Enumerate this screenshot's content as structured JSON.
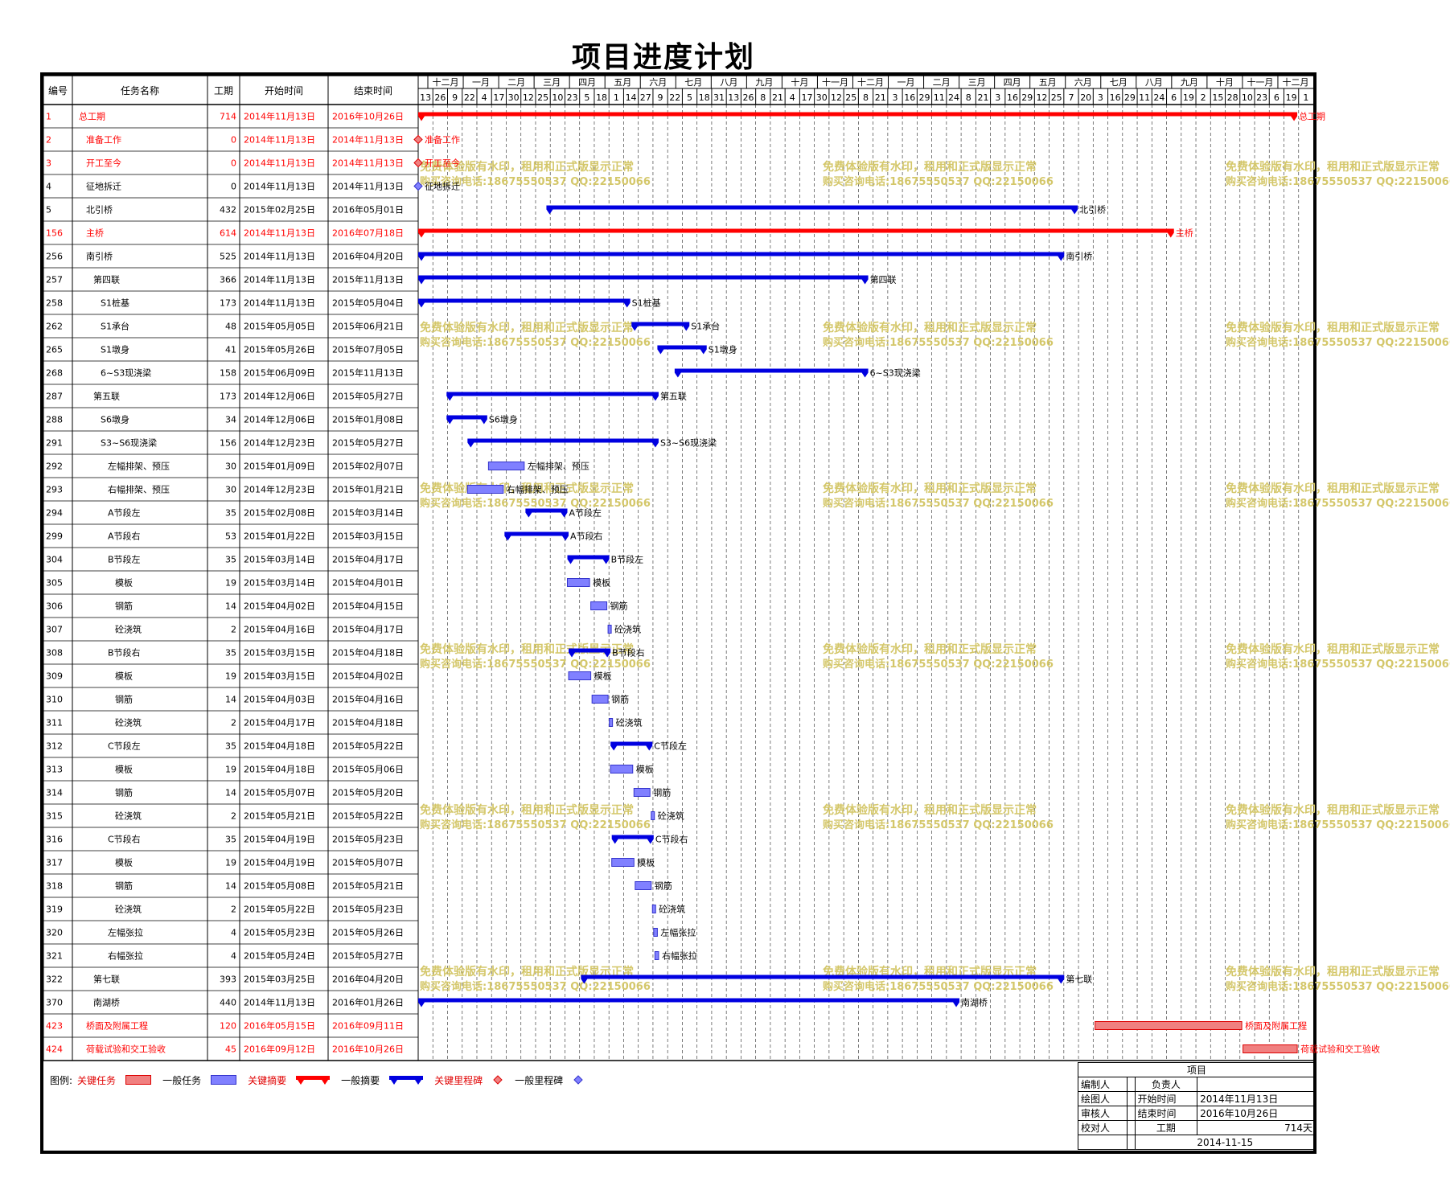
{
  "title": "项目进度计划",
  "columns": {
    "id": "编号",
    "name": "任务名称",
    "dur": "工期",
    "start": "开始时间",
    "end": "结束时间"
  },
  "timescale": {
    "months": [
      "十二月",
      "一月",
      "二月",
      "三月",
      "四月",
      "五月",
      "六月",
      "七月",
      "八月",
      "九月",
      "十月",
      "十一月",
      "十二月",
      "一月",
      "二月",
      "三月",
      "四月",
      "五月",
      "六月",
      "七月",
      "八月",
      "九月",
      "十月",
      "十一月",
      "十二月"
    ],
    "days": [
      "13",
      "26",
      "9",
      "22",
      "4",
      "17",
      "30",
      "12",
      "25",
      "10",
      "23",
      "5",
      "18",
      "1",
      "14",
      "27",
      "9",
      "22",
      "5",
      "18",
      "31",
      "13",
      "26",
      "8",
      "21",
      "4",
      "17",
      "30",
      "12",
      "25",
      "8",
      "21",
      "3",
      "16",
      "29",
      "11",
      "24",
      "8",
      "21",
      "3",
      "16",
      "29",
      "12",
      "25",
      "7",
      "20",
      "3",
      "16",
      "29",
      "11",
      "24",
      "6",
      "19",
      "2",
      "15",
      "28",
      "10",
      "23",
      "6",
      "19",
      "1"
    ]
  },
  "colors": {
    "critical": "#ff0000",
    "normal": "#0000e0",
    "critical_task": "#f08080",
    "normal_task": "#8080ff",
    "watermark": "#d4c76a"
  },
  "chart_data": {
    "type": "gantt",
    "title": "项目进度计划",
    "x_start": "2014-11-13",
    "x_end": "2016-10-26",
    "tasks": [
      {
        "id": "1",
        "name": "总工期",
        "indent": 0,
        "dur": 714,
        "start": "2014年11月13日",
        "end": "2016年10月26日",
        "s": "2014-11-13",
        "e": "2016-10-26",
        "kind": "summary",
        "critical": true,
        "label": "总工期"
      },
      {
        "id": "2",
        "name": "准备工作",
        "indent": 1,
        "dur": 0,
        "start": "2014年11月13日",
        "end": "2014年11月13日",
        "s": "2014-11-13",
        "e": "2014-11-13",
        "kind": "milestone",
        "critical": true,
        "label": "准备工作"
      },
      {
        "id": "3",
        "name": "开工至今",
        "indent": 1,
        "dur": 0,
        "start": "2014年11月13日",
        "end": "2014年11月13日",
        "s": "2014-11-13",
        "e": "2014-11-13",
        "kind": "milestone",
        "critical": true,
        "label": "开工至今"
      },
      {
        "id": "4",
        "name": "征地拆迁",
        "indent": 1,
        "dur": 0,
        "start": "2014年11月13日",
        "end": "2014年11月13日",
        "s": "2014-11-13",
        "e": "2014-11-13",
        "kind": "milestone",
        "critical": false,
        "label": "征地拆迁"
      },
      {
        "id": "5",
        "name": "北引桥",
        "indent": 1,
        "dur": 432,
        "start": "2015年02月25日",
        "end": "2016年05月01日",
        "s": "2015-02-25",
        "e": "2016-05-01",
        "kind": "summary",
        "critical": false,
        "label": "北引桥"
      },
      {
        "id": "156",
        "name": "主桥",
        "indent": 1,
        "dur": 614,
        "start": "2014年11月13日",
        "end": "2016年07月18日",
        "s": "2014-11-13",
        "e": "2016-07-18",
        "kind": "summary",
        "critical": true,
        "label": "主桥"
      },
      {
        "id": "256",
        "name": "南引桥",
        "indent": 1,
        "dur": 525,
        "start": "2014年11月13日",
        "end": "2016年04月20日",
        "s": "2014-11-13",
        "e": "2016-04-20",
        "kind": "summary",
        "critical": false,
        "label": "南引桥"
      },
      {
        "id": "257",
        "name": "第四联",
        "indent": 2,
        "dur": 366,
        "start": "2014年11月13日",
        "end": "2015年11月13日",
        "s": "2014-11-13",
        "e": "2015-11-13",
        "kind": "summary",
        "critical": false,
        "label": "第四联"
      },
      {
        "id": "258",
        "name": "S1桩基",
        "indent": 3,
        "dur": 173,
        "start": "2014年11月13日",
        "end": "2015年05月04日",
        "s": "2014-11-13",
        "e": "2015-05-04",
        "kind": "summary",
        "critical": false,
        "label": "S1桩基"
      },
      {
        "id": "262",
        "name": "S1承台",
        "indent": 3,
        "dur": 48,
        "start": "2015年05月05日",
        "end": "2015年06月21日",
        "s": "2015-05-05",
        "e": "2015-06-21",
        "kind": "summary",
        "critical": false,
        "label": "S1承台"
      },
      {
        "id": "265",
        "name": "S1墩身",
        "indent": 3,
        "dur": 41,
        "start": "2015年05月26日",
        "end": "2015年07月05日",
        "s": "2015-05-26",
        "e": "2015-07-05",
        "kind": "summary",
        "critical": false,
        "label": "S1墩身"
      },
      {
        "id": "268",
        "name": "6~S3现浇梁",
        "indent": 3,
        "dur": 158,
        "start": "2015年06月09日",
        "end": "2015年11月13日",
        "s": "2015-06-09",
        "e": "2015-11-13",
        "kind": "summary",
        "critical": false,
        "label": "6~S3现浇梁"
      },
      {
        "id": "287",
        "name": "第五联",
        "indent": 2,
        "dur": 173,
        "start": "2014年12月06日",
        "end": "2015年05月27日",
        "s": "2014-12-06",
        "e": "2015-05-27",
        "kind": "summary",
        "critical": false,
        "label": "第五联"
      },
      {
        "id": "288",
        "name": "S6墩身",
        "indent": 3,
        "dur": 34,
        "start": "2014年12月06日",
        "end": "2015年01月08日",
        "s": "2014-12-06",
        "e": "2015-01-08",
        "kind": "summary",
        "critical": false,
        "label": "S6墩身"
      },
      {
        "id": "291",
        "name": "S3~S6现浇梁",
        "indent": 3,
        "dur": 156,
        "start": "2014年12月23日",
        "end": "2015年05月27日",
        "s": "2014-12-23",
        "e": "2015-05-27",
        "kind": "summary",
        "critical": false,
        "label": "S3~S6现浇梁"
      },
      {
        "id": "292",
        "name": "左幅排架、预压",
        "indent": 4,
        "dur": 30,
        "start": "2015年01月09日",
        "end": "2015年02月07日",
        "s": "2015-01-09",
        "e": "2015-02-07",
        "kind": "task",
        "critical": false,
        "label": "左幅排架、预压"
      },
      {
        "id": "293",
        "name": "右幅排架、预压",
        "indent": 4,
        "dur": 30,
        "start": "2014年12月23日",
        "end": "2015年01月21日",
        "s": "2014-12-23",
        "e": "2015-01-21",
        "kind": "task",
        "critical": false,
        "label": "右幅排架、预压"
      },
      {
        "id": "294",
        "name": "A节段左",
        "indent": 4,
        "dur": 35,
        "start": "2015年02月08日",
        "end": "2015年03月14日",
        "s": "2015-02-08",
        "e": "2015-03-14",
        "kind": "summary",
        "critical": false,
        "label": "A节段左"
      },
      {
        "id": "299",
        "name": "A节段右",
        "indent": 4,
        "dur": 53,
        "start": "2015年01月22日",
        "end": "2015年03月15日",
        "s": "2015-01-22",
        "e": "2015-03-15",
        "kind": "summary",
        "critical": false,
        "label": "A节段右"
      },
      {
        "id": "304",
        "name": "B节段左",
        "indent": 4,
        "dur": 35,
        "start": "2015年03月14日",
        "end": "2015年04月17日",
        "s": "2015-03-14",
        "e": "2015-04-17",
        "kind": "summary",
        "critical": false,
        "label": "B节段左"
      },
      {
        "id": "305",
        "name": "模板",
        "indent": 5,
        "dur": 19,
        "start": "2015年03月14日",
        "end": "2015年04月01日",
        "s": "2015-03-14",
        "e": "2015-04-01",
        "kind": "task",
        "critical": false,
        "label": "模板"
      },
      {
        "id": "306",
        "name": "钢筋",
        "indent": 5,
        "dur": 14,
        "start": "2015年04月02日",
        "end": "2015年04月15日",
        "s": "2015-04-02",
        "e": "2015-04-15",
        "kind": "task",
        "critical": false,
        "label": "钢筋"
      },
      {
        "id": "307",
        "name": "砼浇筑",
        "indent": 5,
        "dur": 2,
        "start": "2015年04月16日",
        "end": "2015年04月17日",
        "s": "2015-04-16",
        "e": "2015-04-17",
        "kind": "task",
        "critical": false,
        "label": "砼浇筑"
      },
      {
        "id": "308",
        "name": "B节段右",
        "indent": 4,
        "dur": 35,
        "start": "2015年03月15日",
        "end": "2015年04月18日",
        "s": "2015-03-15",
        "e": "2015-04-18",
        "kind": "summary",
        "critical": false,
        "label": "B节段右"
      },
      {
        "id": "309",
        "name": "模板",
        "indent": 5,
        "dur": 19,
        "start": "2015年03月15日",
        "end": "2015年04月02日",
        "s": "2015-03-15",
        "e": "2015-04-02",
        "kind": "task",
        "critical": false,
        "label": "模板"
      },
      {
        "id": "310",
        "name": "钢筋",
        "indent": 5,
        "dur": 14,
        "start": "2015年04月03日",
        "end": "2015年04月16日",
        "s": "2015-04-03",
        "e": "2015-04-16",
        "kind": "task",
        "critical": false,
        "label": "钢筋"
      },
      {
        "id": "311",
        "name": "砼浇筑",
        "indent": 5,
        "dur": 2,
        "start": "2015年04月17日",
        "end": "2015年04月18日",
        "s": "2015-04-17",
        "e": "2015-04-18",
        "kind": "task",
        "critical": false,
        "label": "砼浇筑"
      },
      {
        "id": "312",
        "name": "C节段左",
        "indent": 4,
        "dur": 35,
        "start": "2015年04月18日",
        "end": "2015年05月22日",
        "s": "2015-04-18",
        "e": "2015-05-22",
        "kind": "summary",
        "critical": false,
        "label": "C节段左"
      },
      {
        "id": "313",
        "name": "模板",
        "indent": 5,
        "dur": 19,
        "start": "2015年04月18日",
        "end": "2015年05月06日",
        "s": "2015-04-18",
        "e": "2015-05-06",
        "kind": "task",
        "critical": false,
        "label": "模板"
      },
      {
        "id": "314",
        "name": "钢筋",
        "indent": 5,
        "dur": 14,
        "start": "2015年05月07日",
        "end": "2015年05月20日",
        "s": "2015-05-07",
        "e": "2015-05-20",
        "kind": "task",
        "critical": false,
        "label": "钢筋"
      },
      {
        "id": "315",
        "name": "砼浇筑",
        "indent": 5,
        "dur": 2,
        "start": "2015年05月21日",
        "end": "2015年05月22日",
        "s": "2015-05-21",
        "e": "2015-05-22",
        "kind": "task",
        "critical": false,
        "label": "砼浇筑"
      },
      {
        "id": "316",
        "name": "C节段右",
        "indent": 4,
        "dur": 35,
        "start": "2015年04月19日",
        "end": "2015年05月23日",
        "s": "2015-04-19",
        "e": "2015-05-23",
        "kind": "summary",
        "critical": false,
        "label": "C节段右"
      },
      {
        "id": "317",
        "name": "模板",
        "indent": 5,
        "dur": 19,
        "start": "2015年04月19日",
        "end": "2015年05月07日",
        "s": "2015-04-19",
        "e": "2015-05-07",
        "kind": "task",
        "critical": false,
        "label": "模板"
      },
      {
        "id": "318",
        "name": "钢筋",
        "indent": 5,
        "dur": 14,
        "start": "2015年05月08日",
        "end": "2015年05月21日",
        "s": "2015-05-08",
        "e": "2015-05-21",
        "kind": "task",
        "critical": false,
        "label": "钢筋"
      },
      {
        "id": "319",
        "name": "砼浇筑",
        "indent": 5,
        "dur": 2,
        "start": "2015年05月22日",
        "end": "2015年05月23日",
        "s": "2015-05-22",
        "e": "2015-05-23",
        "kind": "task",
        "critical": false,
        "label": "砼浇筑"
      },
      {
        "id": "320",
        "name": "左幅张拉",
        "indent": 4,
        "dur": 4,
        "start": "2015年05月23日",
        "end": "2015年05月26日",
        "s": "2015-05-23",
        "e": "2015-05-26",
        "kind": "task",
        "critical": false,
        "label": "左幅张拉"
      },
      {
        "id": "321",
        "name": "右幅张拉",
        "indent": 4,
        "dur": 4,
        "start": "2015年05月24日",
        "end": "2015年05月27日",
        "s": "2015-05-24",
        "e": "2015-05-27",
        "kind": "task",
        "critical": false,
        "label": "右幅张拉"
      },
      {
        "id": "322",
        "name": "第七联",
        "indent": 2,
        "dur": 393,
        "start": "2015年03月25日",
        "end": "2016年04月20日",
        "s": "2015-03-25",
        "e": "2016-04-20",
        "kind": "summary",
        "critical": false,
        "label": "第七联"
      },
      {
        "id": "370",
        "name": "南湖桥",
        "indent": 2,
        "dur": 440,
        "start": "2014年11月13日",
        "end": "2016年01月26日",
        "s": "2014-11-13",
        "e": "2016-01-26",
        "kind": "summary",
        "critical": false,
        "label": "南湖桥"
      },
      {
        "id": "423",
        "name": "桥面及附属工程",
        "indent": 1,
        "dur": 120,
        "start": "2016年05月15日",
        "end": "2016年09月11日",
        "s": "2016-05-15",
        "e": "2016-09-11",
        "kind": "task",
        "critical": true,
        "label": "桥面及附属工程"
      },
      {
        "id": "424",
        "name": "荷载试验和交工验收",
        "indent": 1,
        "dur": 45,
        "start": "2016年09月12日",
        "end": "2016年10月26日",
        "s": "2016-09-12",
        "e": "2016-10-26",
        "kind": "task",
        "critical": true,
        "label": "荷载试验和交工验收"
      }
    ]
  },
  "watermark": {
    "line1": "免费体验版有水印，租用和正式版显示正常",
    "line2": "购买咨询电话:18675550537 QQ:22150066"
  },
  "legend": {
    "label": "图例:",
    "critical_task": "关键任务",
    "normal_task": "一般任务",
    "critical_summary": "关键摘要",
    "normal_summary": "一般摘要",
    "critical_milestone": "关键里程碑",
    "normal_milestone": "一般里程碑"
  },
  "signoff": {
    "header": "项目",
    "compiled_by": "编制人",
    "responsible": "负责人",
    "drawn_by": "绘图人",
    "start_label": "开始时间",
    "start_value": "2014年11月13日",
    "reviewed_by": "审核人",
    "end_label": "结束时间",
    "end_value": "2016年10月26日",
    "checked_by": "校对人",
    "dur_label": "工期",
    "dur_value": "714天",
    "date": "2014-11-15"
  }
}
